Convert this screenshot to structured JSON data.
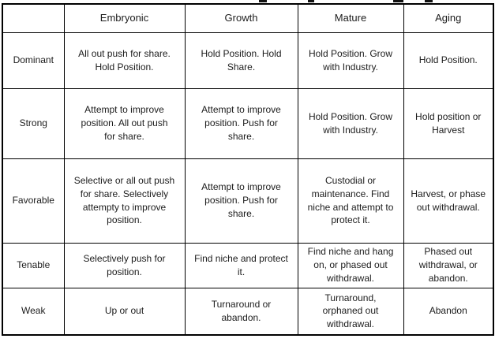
{
  "page": {
    "background_color": "#ffffff",
    "border_color": "#000000",
    "text_color": "#1c1c1c"
  },
  "matrix": {
    "corner_label": "",
    "column_headers": [
      "Embryonic",
      "Growth",
      "Mature",
      "Aging"
    ],
    "rows": [
      {
        "label": "Dominant",
        "cells": [
          "All out push for share.\nHold Position.",
          "Hold Position. Hold\nShare.",
          "Hold Position. Grow\nwith Industry.",
          "Hold Position."
        ]
      },
      {
        "label": "Strong",
        "cells": [
          "Attempt to improve\nposition. All out push\nfor share.",
          "Attempt to improve\nposition. Push for\nshare.",
          "Hold Position. Grow\nwith Industry.",
          "Hold position or\nHarvest"
        ]
      },
      {
        "label": "Favorable",
        "cells": [
          "Selective or all out push\nfor share. Selectively\nattempty to improve\nposition.",
          "Attempt to improve\nposition. Push for\nshare.",
          "Custodial or\nmaintenance. Find\nniche and attempt to\nprotect it.",
          "Harvest, or phase\nout withdrawal."
        ]
      },
      {
        "label": "Tenable",
        "cells": [
          "Selectively push for\nposition.",
          "Find niche and protect\nit.",
          "Find niche and hang\non, or phased out\nwithdrawal.",
          "Phased out\nwithdrawal, or\nabandon."
        ]
      },
      {
        "label": "Weak",
        "cells": [
          "Up or out",
          "Turnaround or\nabandon.",
          "Turnaround,\norphaned out\nwithdrawal.",
          "Abandon"
        ]
      }
    ]
  }
}
